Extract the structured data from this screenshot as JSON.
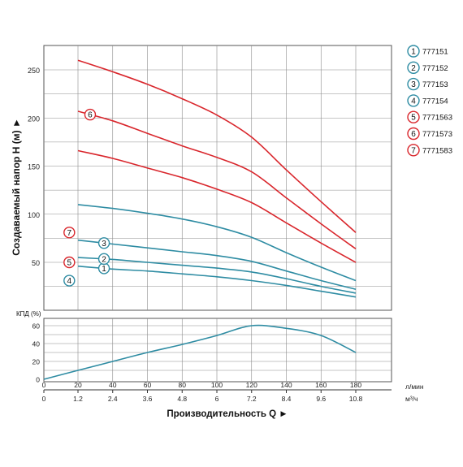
{
  "chart_data": [
    {
      "type": "line",
      "ylabel": "Создаваемый напор Н (м) ►",
      "ylim": [
        0,
        270
      ],
      "xlim": [
        0,
        180
      ],
      "yticks": [
        50,
        100,
        150,
        200,
        250
      ],
      "grid": true,
      "legend_position": "right",
      "colors": {
        "blue": "#2e8ca3",
        "red": "#d9262c",
        "grid": "#8c8c8c"
      },
      "series": [
        {
          "name": "777151",
          "marker": "1",
          "color": "#2e8ca3",
          "marker_at": 35,
          "points": [
            [
              20,
              46
            ],
            [
              40,
              43
            ],
            [
              60,
              41
            ],
            [
              80,
              38
            ],
            [
              100,
              35
            ],
            [
              120,
              31
            ],
            [
              140,
              26
            ],
            [
              160,
              20
            ],
            [
              180,
              14
            ]
          ]
        },
        {
          "name": "777152",
          "marker": "2",
          "color": "#2e8ca3",
          "marker_at": 35,
          "points": [
            [
              20,
              55
            ],
            [
              40,
              53
            ],
            [
              60,
              50
            ],
            [
              80,
              47
            ],
            [
              100,
              44
            ],
            [
              120,
              40
            ],
            [
              140,
              33
            ],
            [
              160,
              25
            ],
            [
              180,
              18
            ]
          ]
        },
        {
          "name": "777153",
          "marker": "3",
          "color": "#2e8ca3",
          "marker_at": 35,
          "points": [
            [
              20,
              73
            ],
            [
              40,
              69
            ],
            [
              60,
              65
            ],
            [
              80,
              61
            ],
            [
              100,
              57
            ],
            [
              120,
              51
            ],
            [
              140,
              41
            ],
            [
              160,
              31
            ],
            [
              180,
              22
            ]
          ]
        },
        {
          "name": "777154",
          "marker": "4",
          "color": "#2e8ca3",
          "marker_at": 15,
          "points": [
            [
              20,
              110
            ],
            [
              40,
              106
            ],
            [
              60,
              101
            ],
            [
              80,
              95
            ],
            [
              100,
              87
            ],
            [
              120,
              76
            ],
            [
              140,
              60
            ],
            [
              160,
              45
            ],
            [
              180,
              31
            ]
          ]
        },
        {
          "name": "7771563",
          "marker": "5",
          "color": "#d9262c",
          "marker_at": 15,
          "points": [
            [
              20,
              166
            ],
            [
              40,
              158
            ],
            [
              60,
              148
            ],
            [
              80,
              138
            ],
            [
              100,
              126
            ],
            [
              120,
              112
            ],
            [
              140,
              91
            ],
            [
              160,
              70
            ],
            [
              180,
              50
            ]
          ]
        },
        {
          "name": "7771573",
          "marker": "6",
          "color": "#d9262c",
          "marker_at": 27,
          "points": [
            [
              20,
              207
            ],
            [
              40,
              197
            ],
            [
              60,
              184
            ],
            [
              80,
              171
            ],
            [
              100,
              159
            ],
            [
              120,
              144
            ],
            [
              140,
              117
            ],
            [
              160,
              90
            ],
            [
              180,
              64
            ]
          ]
        },
        {
          "name": "7771583",
          "marker": "7",
          "color": "#d9262c",
          "marker_at": 15,
          "points": [
            [
              20,
              260
            ],
            [
              40,
              248
            ],
            [
              60,
              235
            ],
            [
              80,
              220
            ],
            [
              100,
              203
            ],
            [
              120,
              180
            ],
            [
              140,
              146
            ],
            [
              160,
              113
            ],
            [
              180,
              81
            ]
          ]
        }
      ]
    },
    {
      "type": "line",
      "ylabel": "КПД (%)",
      "ylim": [
        0,
        70
      ],
      "xlim": [
        0,
        180
      ],
      "yticks": [
        0,
        20,
        40,
        60
      ],
      "grid": true,
      "series": [
        {
          "color": "#2e8ca3",
          "points": [
            [
              0,
              0
            ],
            [
              20,
              10
            ],
            [
              40,
              20
            ],
            [
              60,
              30
            ],
            [
              80,
              39
            ],
            [
              100,
              49
            ],
            [
              120,
              60
            ],
            [
              140,
              57
            ],
            [
              160,
              49
            ],
            [
              180,
              30
            ]
          ]
        }
      ]
    }
  ],
  "axes": {
    "flow_lpm_ticks": [
      "0",
      "20",
      "40",
      "60",
      "80",
      "100",
      "120",
      "140",
      "160",
      "180"
    ],
    "flow_m3h_ticks": [
      "0",
      "1.2",
      "2.4",
      "3.6",
      "4.8",
      "6",
      "7.2",
      "8.4",
      "9.6",
      "10.8"
    ],
    "unit_lpm": "л/мин",
    "unit_m3h": "м³/ч",
    "xlabel": "Производительность Q ►"
  }
}
